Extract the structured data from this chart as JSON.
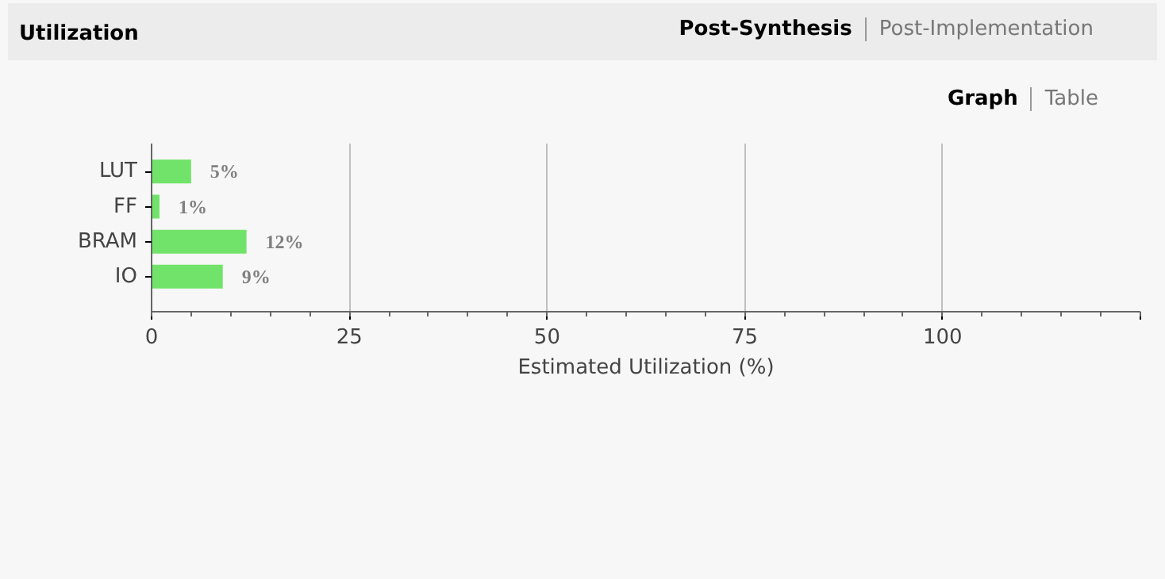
{
  "chart_data": {
    "type": "bar",
    "orientation": "horizontal",
    "title": "Utilization",
    "annotations": [
      "Post-Synthesis",
      "Post-Implementation",
      "Graph",
      "Table"
    ],
    "categories": [
      "LUT",
      "FF",
      "BRAM",
      "IO"
    ],
    "values": [
      5,
      1,
      12,
      9
    ],
    "color": "#72e36a",
    "value_labels": [
      "5%",
      "1%",
      "12%",
      "9%"
    ],
    "xlabel": "Estimated Utilization (%)",
    "xlim": [
      0,
      125
    ],
    "xticks": [
      0,
      25,
      50,
      75,
      100,
      {
        "value": 125,
        "label": null
      }
    ],
    "grid": "x"
  }
}
